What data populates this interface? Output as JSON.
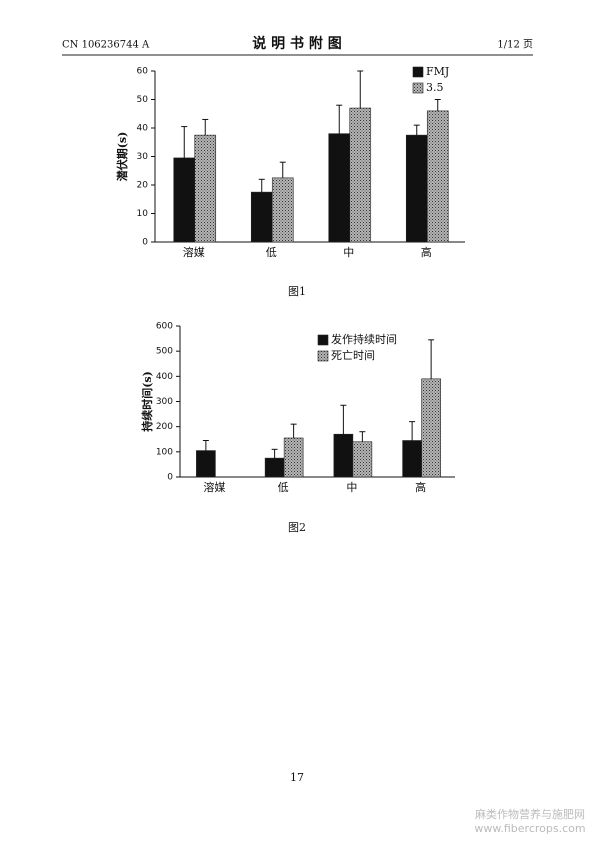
{
  "header": {
    "left": "CN 106236744 A",
    "title": "说 明 书 附 图",
    "right": "1/12 页"
  },
  "chart_data": [
    {
      "type": "bar",
      "y_label": "潜伏期(s)",
      "caption": "图1",
      "categories": [
        "溶媒",
        "低",
        "中",
        "高"
      ],
      "series": [
        {
          "name": "FMJ",
          "color": "#111111",
          "values": [
            29.5,
            17.5,
            38,
            37.5
          ],
          "errors": [
            11,
            4.5,
            10,
            3.5
          ]
        },
        {
          "name": "3.5",
          "color": "#8a8a8a",
          "values": [
            37.5,
            22.5,
            47,
            46
          ],
          "errors": [
            5.5,
            5.5,
            13,
            4
          ]
        }
      ],
      "ylim": [
        0,
        60
      ],
      "yticks": [
        0,
        10,
        20,
        30,
        40,
        50,
        60
      ]
    },
    {
      "type": "bar",
      "y_label": "持续时间(s)",
      "caption": "图2",
      "categories": [
        "溶媒",
        "低",
        "中",
        "高"
      ],
      "series": [
        {
          "name": "发作持续时间",
          "color": "#111111",
          "values": [
            105,
            75,
            170,
            145
          ],
          "errors": [
            40,
            35,
            115,
            75
          ]
        },
        {
          "name": "死亡时间",
          "color": "#8a8a8a",
          "values": [
            null,
            155,
            140,
            390
          ],
          "errors": [
            null,
            55,
            40,
            155
          ]
        }
      ],
      "ylim": [
        0,
        600
      ],
      "yticks": [
        0,
        100,
        200,
        300,
        400,
        500,
        600
      ]
    }
  ],
  "page_number": "17",
  "watermark": [
    "麻类作物营养与施肥网",
    "www.fibercrops.com"
  ]
}
